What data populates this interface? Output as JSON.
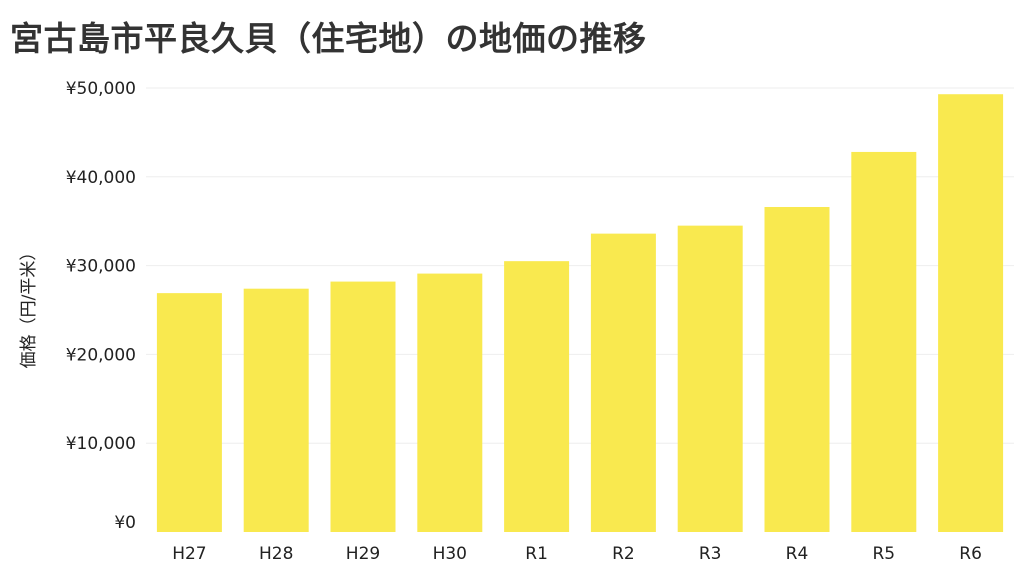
{
  "chart_data": {
    "type": "bar",
    "title": "宮古島市平良久貝（住宅地）の地価の推移",
    "xlabel": "",
    "ylabel": "価格（円/平米）",
    "categories": [
      "H27",
      "H28",
      "H29",
      "H30",
      "R1",
      "R2",
      "R3",
      "R4",
      "R5",
      "R6"
    ],
    "values": [
      26900,
      27400,
      28200,
      29100,
      30500,
      33600,
      34500,
      36600,
      42800,
      49300
    ],
    "ylim": [
      0,
      50000
    ],
    "yticks": [
      0,
      10000,
      20000,
      30000,
      40000,
      50000
    ],
    "ytick_labels": [
      "¥0",
      "¥10,000",
      "¥20,000",
      "¥30,000",
      "¥40,000",
      "¥50,000"
    ],
    "bar_color": "#f9e94f",
    "grid": true,
    "grid_color": "#eeeeee"
  }
}
